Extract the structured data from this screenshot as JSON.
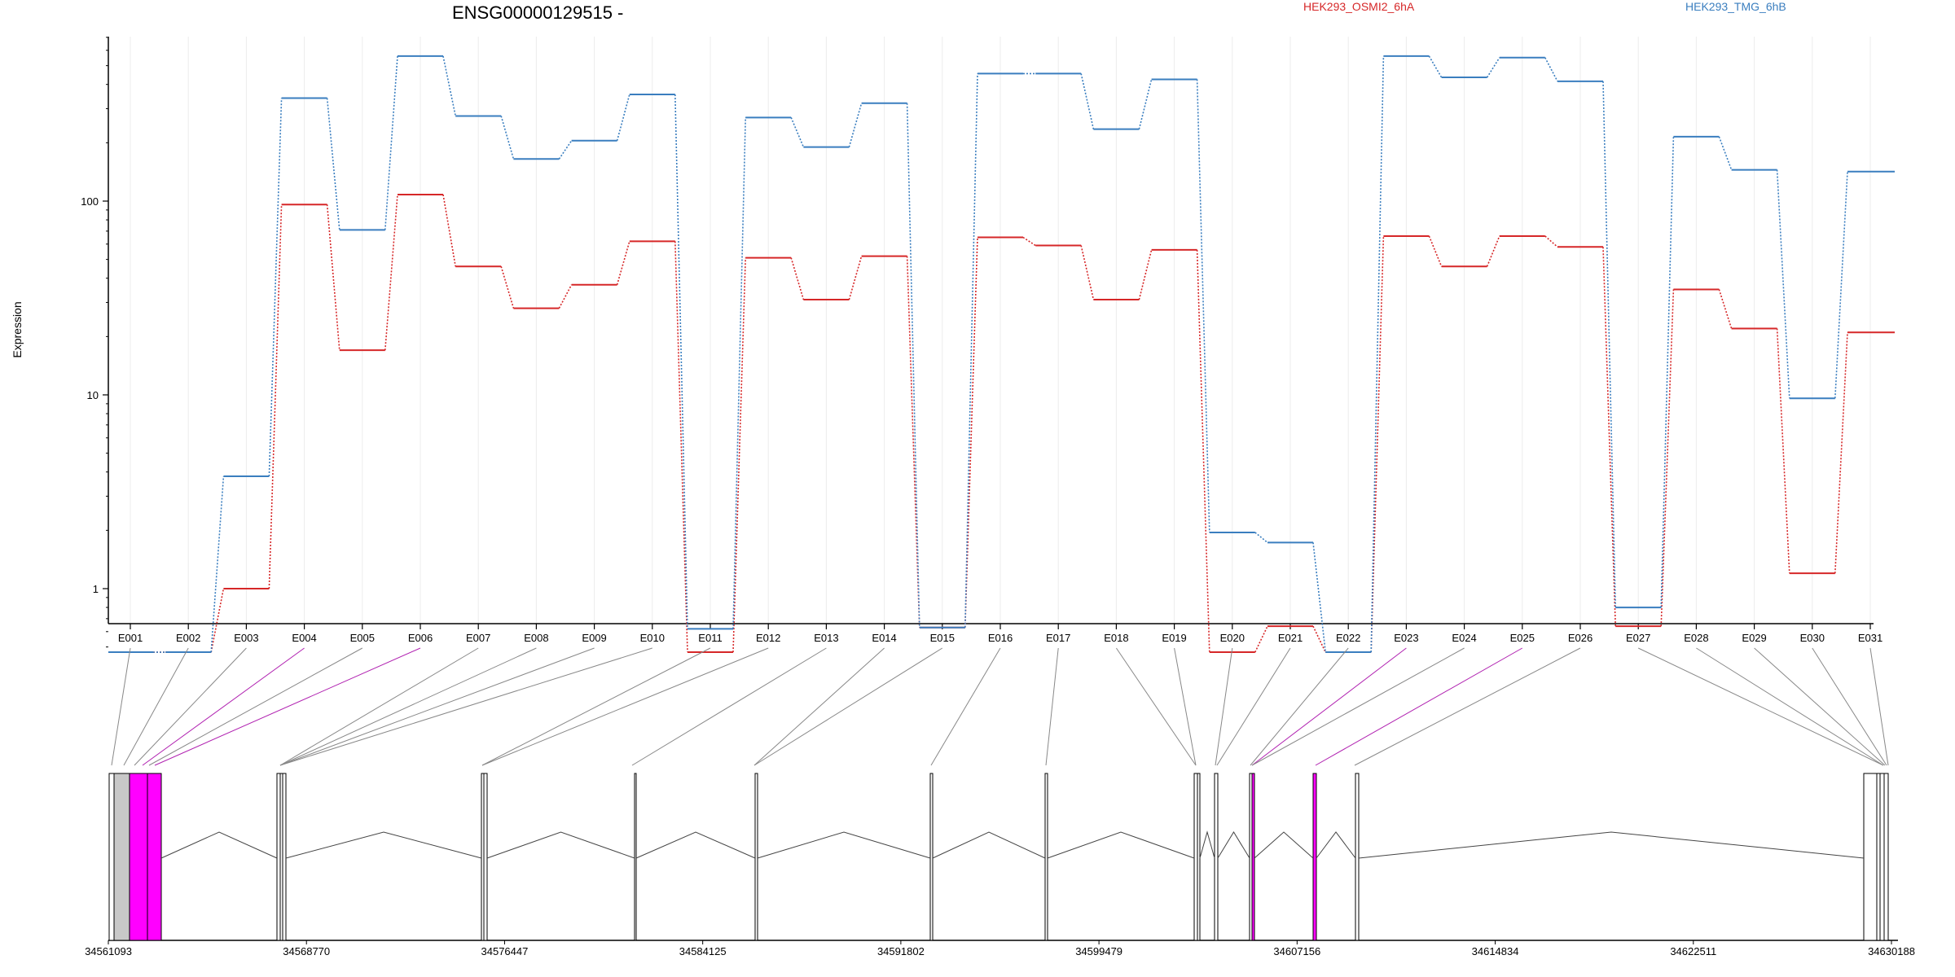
{
  "chart_data": {
    "type": "line",
    "title": "ENSG00000129515 -",
    "ylabel": "Expression",
    "yscale": "log",
    "ylim": [
      0.45,
      780
    ],
    "yticks": [
      {
        "value": 1,
        "label": "1"
      },
      {
        "value": 10,
        "label": "10"
      },
      {
        "value": 100,
        "label": "100"
      }
    ],
    "grid": "vertical",
    "legend_placement": "top",
    "categories": [
      "E001",
      "E002",
      "E003",
      "E004",
      "E005",
      "E006",
      "E007",
      "E008",
      "E009",
      "E010",
      "E011",
      "E012",
      "E013",
      "E014",
      "E015",
      "E016",
      "E017",
      "E018",
      "E019",
      "E020",
      "E021",
      "E022",
      "E023",
      "E024",
      "E025",
      "E026",
      "E027",
      "E028",
      "E029",
      "E030",
      "E031"
    ],
    "series": [
      {
        "name": "HEK293_OSMI2_6hA",
        "color": "#d62728",
        "values": [
          0.47,
          0.47,
          1.0,
          96,
          17,
          108,
          46,
          28,
          37,
          62,
          0.47,
          51,
          31,
          52,
          0.63,
          65,
          59,
          31,
          56,
          0.47,
          0.64,
          0.47,
          66,
          46,
          66,
          58,
          0.64,
          35,
          22,
          1.2,
          21
        ]
      },
      {
        "name": "HEK293_TMG_6hB",
        "color": "#3a7ebf",
        "values": [
          0.47,
          0.47,
          3.8,
          340,
          71,
          560,
          275,
          165,
          205,
          355,
          0.62,
          270,
          190,
          320,
          0.63,
          455,
          455,
          235,
          425,
          1.95,
          1.73,
          0.47,
          560,
          435,
          550,
          415,
          0.8,
          215,
          145,
          9.6,
          142
        ]
      }
    ],
    "gene_model": {
      "coordinate_ticks": [
        "34561093",
        "34568770",
        "34576447",
        "34584125",
        "34591802",
        "34599479",
        "34607156",
        "34614834",
        "34622511",
        "34630188"
      ],
      "highlighted_exons": [
        "E004",
        "E006",
        "E023",
        "E025"
      ],
      "highlight_color": "#ff00ff"
    }
  }
}
